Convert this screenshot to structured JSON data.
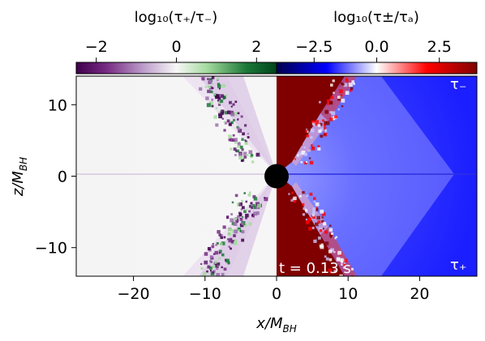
{
  "chart_data": {
    "type": "heatmap",
    "panels": [
      {
        "name": "left",
        "quantity": "log₁₀(τ₊/τ₋)",
        "colormap": "PRGn",
        "clim": [
          -2.5,
          2.5
        ],
        "x_range": [
          -28,
          0
        ]
      },
      {
        "name": "right",
        "quantity": "log₁₀(τ±/τₐ)",
        "colormap": "seismic",
        "clim": [
          -4,
          4
        ],
        "x_range": [
          0,
          28
        ]
      }
    ],
    "xlabel": "x/M_BH",
    "ylabel": "z/M_BH",
    "xlim": [
      -28,
      28
    ],
    "ylim": [
      -14,
      14
    ],
    "xticks": [
      -20,
      -10,
      0,
      10,
      20
    ],
    "xtick_labels": [
      "−20",
      "−10",
      "0",
      "10",
      "20"
    ],
    "yticks": [
      -10,
      0,
      10
    ],
    "ytick_labels": [
      "−10",
      "0",
      "10"
    ],
    "colorbars": [
      {
        "title": "log₁₀(τ₊/τ₋)",
        "range": [
          -2.5,
          2.5
        ],
        "colors": [
          "#40004b",
          "#762a83",
          "#c2a5cf",
          "#f7f7f7",
          "#a6dba0",
          "#1b7837",
          "#00441b"
        ],
        "ticks": [
          -2,
          0,
          2
        ],
        "tick_labels": [
          "−2",
          "0",
          "2"
        ]
      },
      {
        "title": "log₁₀(τ±/τₐ)",
        "range": [
          -4,
          4
        ],
        "colors": [
          "#00004c",
          "#0000ff",
          "#ffffff",
          "#ff0000",
          "#800000"
        ],
        "ticks": [
          -2.5,
          0,
          2.5
        ],
        "tick_labels": [
          "−2.5",
          "0.0",
          "2.5"
        ]
      }
    ],
    "annotations": {
      "time": "t = 0.13 s",
      "tau_minus": "τ₋",
      "tau_plus": "τ₊"
    },
    "black_hole": {
      "x": 0,
      "z": 0,
      "radius": 1.7
    }
  }
}
